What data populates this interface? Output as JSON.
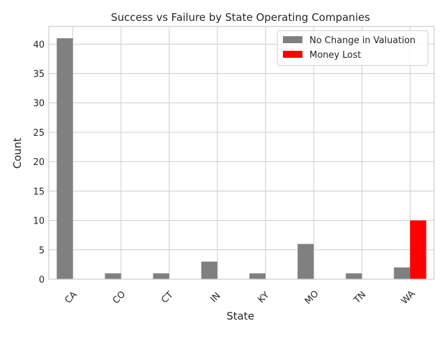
{
  "chart_data": {
    "type": "bar",
    "title": "Success vs Failure by State Operating Companies",
    "xlabel": "State",
    "ylabel": "Count",
    "categories": [
      "CA",
      "CO",
      "CT",
      "IN",
      "KY",
      "MO",
      "TN",
      "WA"
    ],
    "series": [
      {
        "name": "No Change in Valuation",
        "color": "#808080",
        "values": [
          41,
          1,
          1,
          3,
          1,
          6,
          1,
          2
        ]
      },
      {
        "name": "Money Lost",
        "color": "#ff0000",
        "values": [
          0,
          0,
          0,
          0,
          0,
          0,
          0,
          10
        ]
      }
    ],
    "ylim": [
      0,
      43
    ],
    "yticks": [
      0,
      5,
      10,
      15,
      20,
      25,
      30,
      35,
      40
    ],
    "grid": true,
    "legend_position": "top-right"
  }
}
